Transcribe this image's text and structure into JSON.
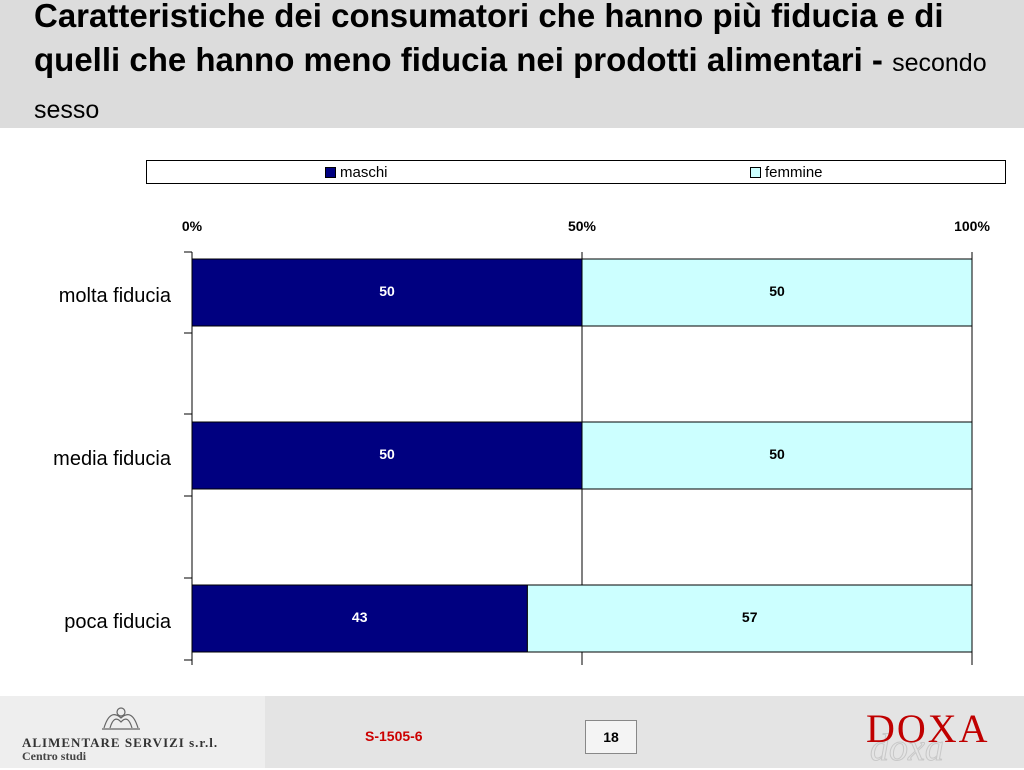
{
  "header": {
    "title": "Caratteristiche dei consumatori che hanno più fiducia e di quelli che hanno meno fiducia nei prodotti alimentari -",
    "subtitle": "secondo sesso",
    "background": "#dcdcdc"
  },
  "legend": {
    "items": [
      {
        "label": "maschi",
        "color": "#000080"
      },
      {
        "label": "femmine",
        "color": "#ccffff"
      }
    ]
  },
  "chart_data": {
    "type": "bar",
    "orientation": "horizontal",
    "stacked": "percent",
    "categories": [
      "molta fiducia",
      "media fiducia",
      "poca fiducia"
    ],
    "series": [
      {
        "name": "maschi",
        "values": [
          50,
          50,
          43
        ],
        "color": "#000080"
      },
      {
        "name": "femmine",
        "values": [
          50,
          50,
          57
        ],
        "color": "#ccffff"
      }
    ],
    "xlim": [
      0,
      100
    ],
    "x_ticks": [
      "0%",
      "50%",
      "100%"
    ],
    "x_tick_values": [
      0,
      50,
      100
    ],
    "legend_position": "top",
    "grid": true
  },
  "footer": {
    "company_name": "ALIMENTARE SERVIZI s.r.l.",
    "company_dept": "Centro studi",
    "doc_code": "S-1505-6",
    "page_number": "18",
    "brand": "DOXA",
    "brand_shadow": "doxa"
  }
}
